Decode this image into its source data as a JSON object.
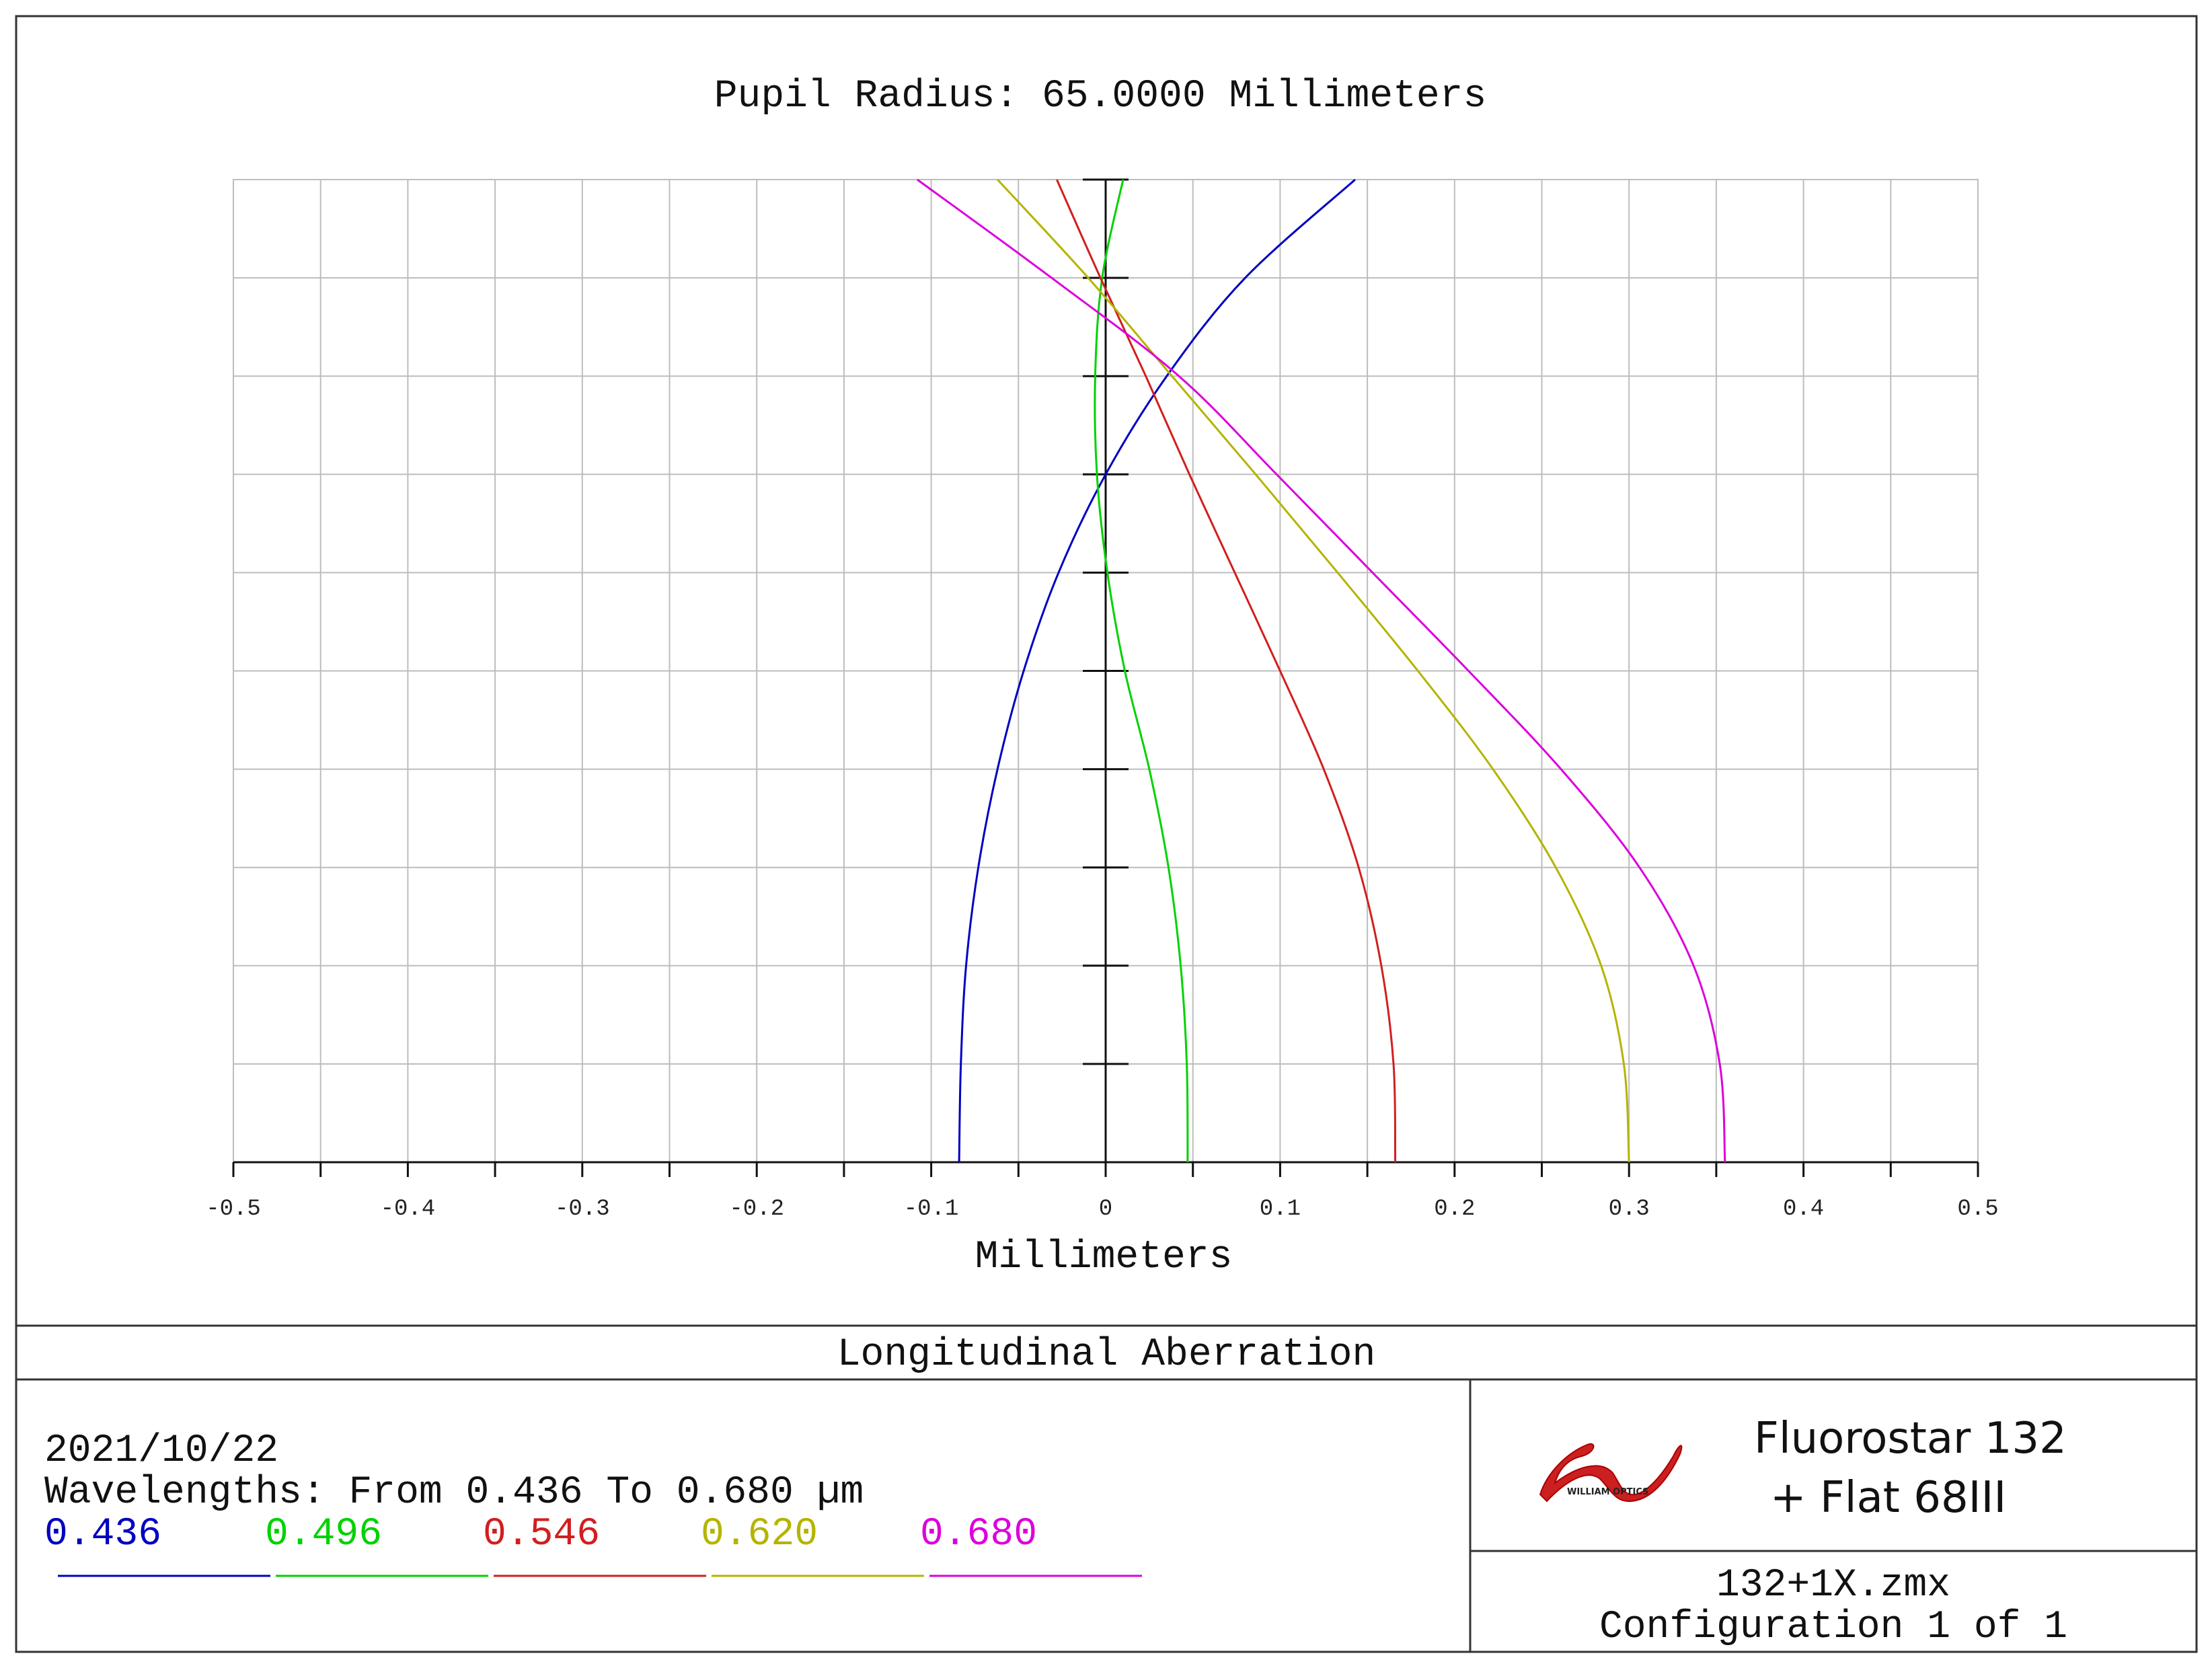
{
  "header": {
    "pupil_radius": "Pupil Radius: 65.0000 Millimeters"
  },
  "footer": {
    "plot_title": "Longitudinal Aberration",
    "date": "2021/10/22",
    "wavelength_range": "Wavelengths: From 0.436 To 0.680 µm",
    "company": {
      "logo_text": "WILLIAM OPTICS",
      "line1": "Fluorostar 132",
      "line2": "+ Flat 68III"
    },
    "filename": "132+1X.zmx",
    "configuration": "Configuration 1 of 1"
  },
  "chart_data": {
    "type": "line",
    "title": "",
    "xlabel": "Millimeters",
    "ylabel": "",
    "xlim": [
      -0.5,
      0.5
    ],
    "ylim": [
      0,
      1
    ],
    "x_ticks": [
      "-0.5",
      "-0.4",
      "-0.3",
      "-0.2",
      "-0.1",
      "0",
      "0.1",
      "0.2",
      "0.3",
      "0.4",
      "0.5"
    ],
    "grid": true,
    "legend_position": "bottom-left",
    "series": [
      {
        "name": "0.436",
        "color": "#0000c0",
        "points": [
          [
            -0.084,
            0
          ],
          [
            -0.083,
            0.1
          ],
          [
            -0.08,
            0.2
          ],
          [
            -0.073,
            0.3
          ],
          [
            -0.062,
            0.4
          ],
          [
            -0.047,
            0.5
          ],
          [
            -0.027,
            0.6
          ],
          [
            0.0,
            0.7
          ],
          [
            0.035,
            0.8
          ],
          [
            0.08,
            0.9
          ],
          [
            0.143,
            1.0
          ]
        ]
      },
      {
        "name": "0.496",
        "color": "#00d200",
        "points": [
          [
            0.047,
            0
          ],
          [
            0.0465,
            0.1
          ],
          [
            0.043,
            0.2
          ],
          [
            0.036,
            0.3
          ],
          [
            0.025,
            0.4
          ],
          [
            0.011,
            0.5
          ],
          [
            0.001,
            0.6
          ],
          [
            -0.005,
            0.7
          ],
          [
            -0.006,
            0.8
          ],
          [
            -0.002,
            0.9
          ],
          [
            0.01,
            1.0
          ]
        ]
      },
      {
        "name": "0.546",
        "color": "#d21e1e",
        "points": [
          [
            0.166,
            0
          ],
          [
            0.165,
            0.1
          ],
          [
            0.158,
            0.2
          ],
          [
            0.145,
            0.3
          ],
          [
            0.125,
            0.4
          ],
          [
            0.1,
            0.5
          ],
          [
            0.074,
            0.6
          ],
          [
            0.048,
            0.7
          ],
          [
            0.023,
            0.8
          ],
          [
            -0.003,
            0.9
          ],
          [
            -0.028,
            1.0
          ]
        ]
      },
      {
        "name": "0.620",
        "color": "#b4b400",
        "points": [
          [
            0.3,
            0
          ],
          [
            0.297,
            0.1
          ],
          [
            0.284,
            0.2
          ],
          [
            0.258,
            0.3
          ],
          [
            0.222,
            0.4
          ],
          [
            0.179,
            0.5
          ],
          [
            0.133,
            0.6
          ],
          [
            0.086,
            0.7
          ],
          [
            0.038,
            0.8
          ],
          [
            -0.01,
            0.9
          ],
          [
            -0.062,
            1.0
          ]
        ]
      },
      {
        "name": "0.680",
        "color": "#dc00dc",
        "points": [
          [
            0.355,
            0
          ],
          [
            0.352,
            0.1
          ],
          [
            0.337,
            0.2
          ],
          [
            0.306,
            0.3
          ],
          [
            0.261,
            0.4
          ],
          [
            0.208,
            0.5
          ],
          [
            0.153,
            0.6
          ],
          [
            0.098,
            0.7
          ],
          [
            0.042,
            0.8
          ],
          [
            -0.031,
            0.9
          ],
          [
            -0.108,
            1.0
          ]
        ]
      }
    ]
  }
}
